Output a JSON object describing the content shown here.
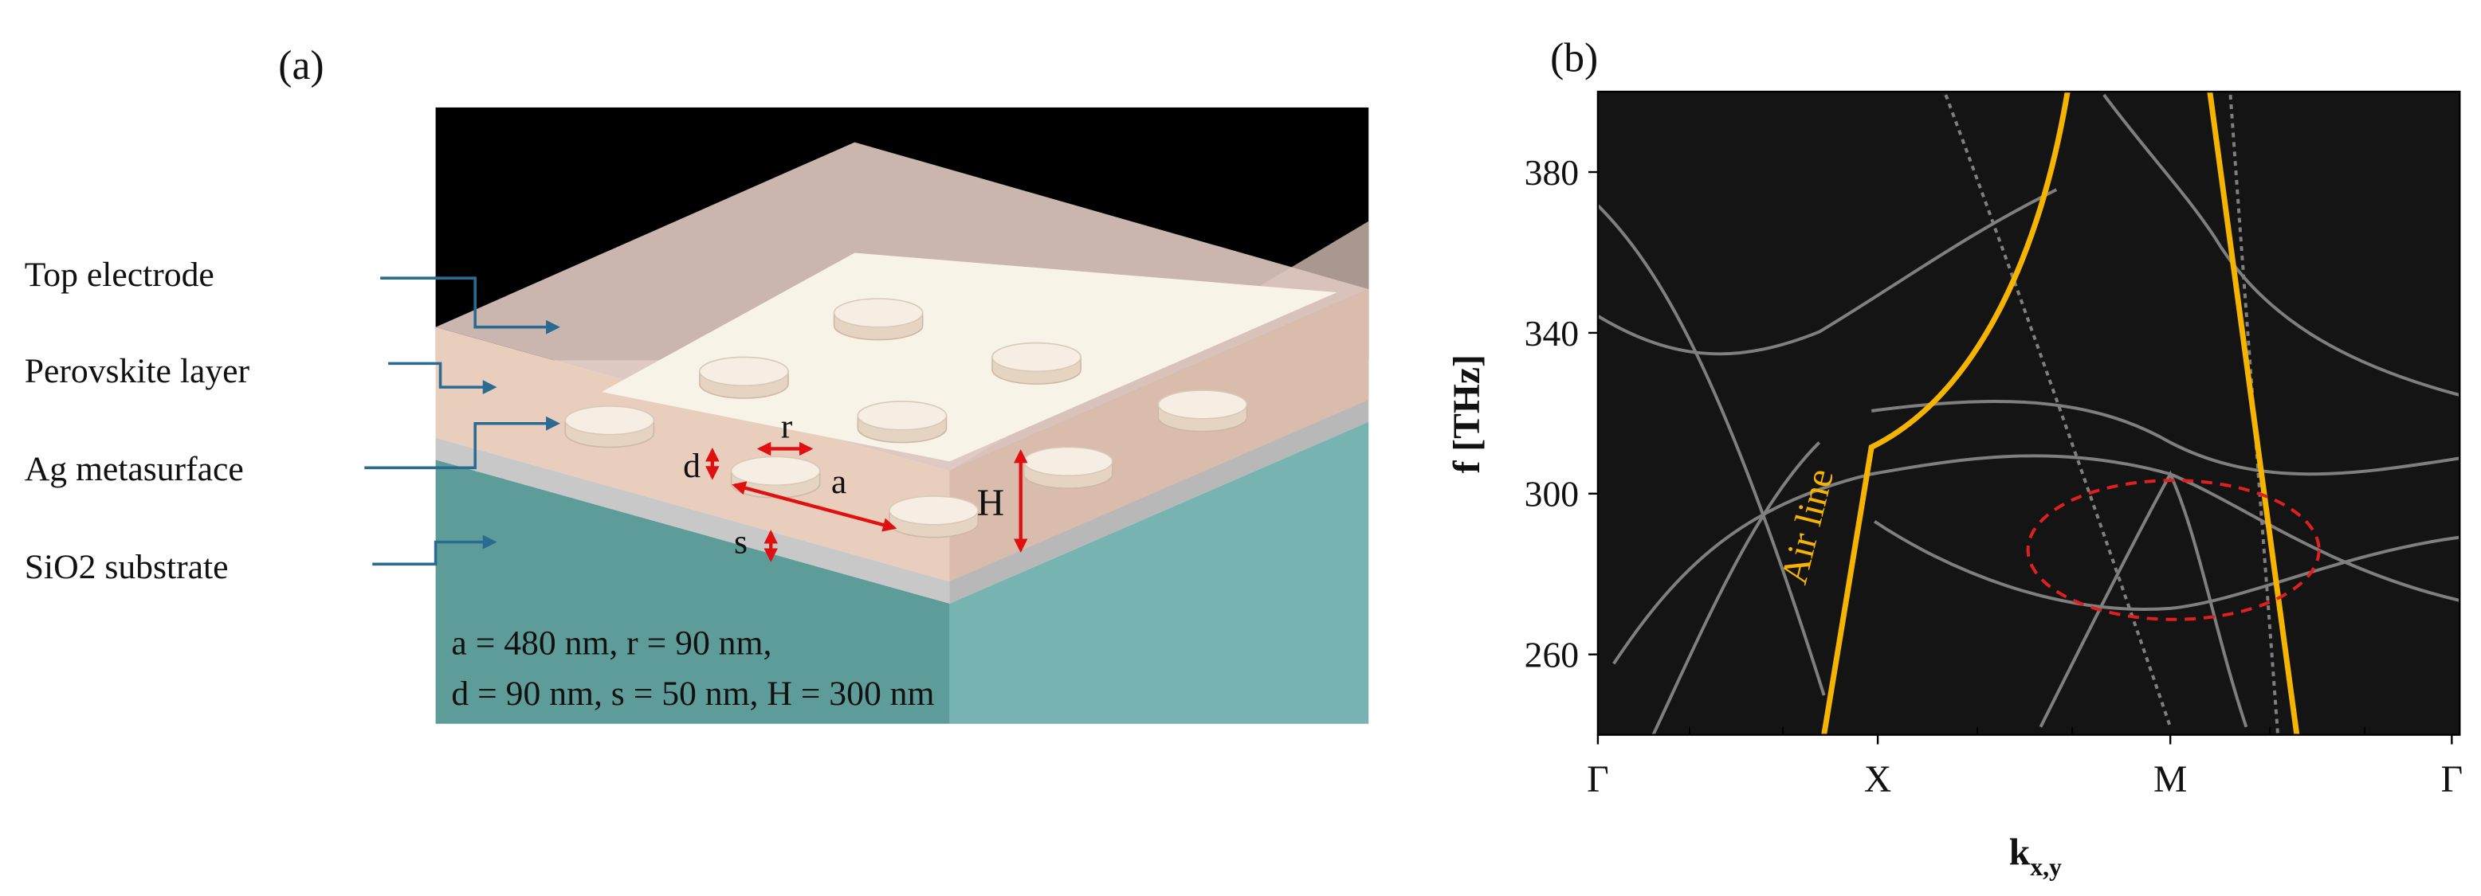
{
  "panel_a": {
    "label": "(a)",
    "layers": [
      "Top electrode",
      "Perovskite layer",
      "Ag metasurface",
      "SiO2 substrate"
    ],
    "dimension_labels": [
      "r",
      "d",
      "a",
      "H",
      "s"
    ],
    "parameters": [
      "a = 480 nm, r = 90 nm,",
      "d = 90 nm, s = 50 nm, H = 300 nm"
    ]
  },
  "panel_b": {
    "label": "(b)",
    "y_label": "f [THz]",
    "x_label": "k",
    "x_label_sub": "x,y",
    "ylim": [
      240,
      400
    ],
    "yticks": [
      260,
      300,
      340,
      380
    ],
    "xticks": [
      "Γ",
      "X",
      "M",
      "Γ"
    ],
    "annotation": "Air line"
  }
}
